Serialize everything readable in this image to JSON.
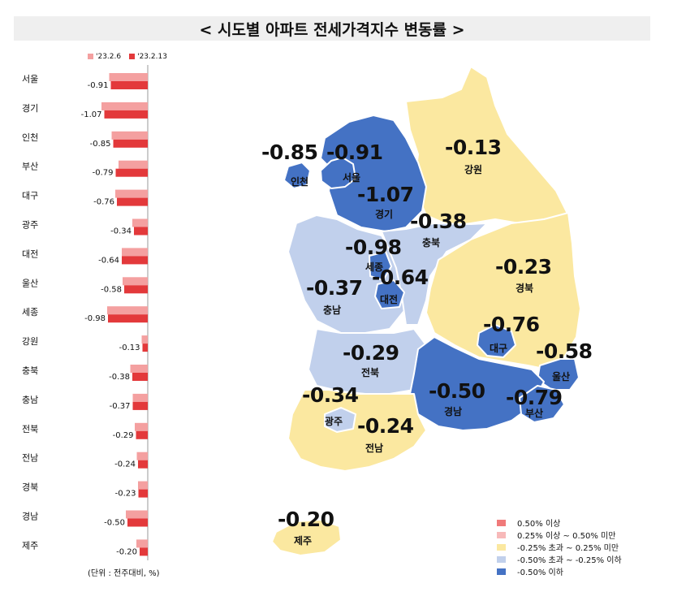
{
  "title": "< 시도별 아파트 전세가격지수 변동률 >",
  "legend_top": [
    {
      "label": "'23.2.6",
      "color": "#f4a0a0"
    },
    {
      "label": "'23.2.13",
      "color": "#e3393b"
    }
  ],
  "unit_note": "(단위 : 전주대비, %)",
  "chart_data": {
    "type": "bar",
    "orientation": "horizontal",
    "categories": [
      "서울",
      "경기",
      "인천",
      "부산",
      "대구",
      "광주",
      "대전",
      "울산",
      "세종",
      "강원",
      "충북",
      "충남",
      "전북",
      "전남",
      "경북",
      "경남",
      "제주"
    ],
    "series": [
      {
        "name": "'23.2.6",
        "color": "#f4a0a0",
        "values": [
          -0.95,
          -1.14,
          -0.89,
          -0.72,
          -0.8,
          -0.38,
          -0.64,
          -0.62,
          -1.0,
          -0.15,
          -0.43,
          -0.37,
          -0.32,
          -0.27,
          -0.24,
          -0.54,
          -0.28
        ]
      },
      {
        "name": "'23.2.13",
        "color": "#e3393b",
        "values": [
          -0.91,
          -1.07,
          -0.85,
          -0.79,
          -0.76,
          -0.34,
          -0.64,
          -0.58,
          -0.98,
          -0.13,
          -0.38,
          -0.37,
          -0.29,
          -0.24,
          -0.23,
          -0.5,
          -0.2
        ]
      }
    ],
    "data_labels": [
      "-0.91",
      "-1.07",
      "-0.85",
      "-0.79",
      "-0.76",
      "-0.34",
      "-0.64",
      "-0.58",
      "-0.98",
      "-0.13",
      "-0.38",
      "-0.37",
      "-0.29",
      "-0.24",
      "-0.23",
      "-0.50",
      "-0.20"
    ],
    "xlim": [
      -1.2,
      0
    ],
    "grid": false
  },
  "map": {
    "regions": [
      {
        "id": "incheon",
        "name": "인천",
        "value": "-0.85",
        "color": "#4472c4"
      },
      {
        "id": "seoul",
        "name": "서울",
        "value": "-0.91",
        "color": "#4472c4"
      },
      {
        "id": "gyeonggi",
        "name": "경기",
        "value": "-1.07",
        "color": "#4472c4"
      },
      {
        "id": "gangwon",
        "name": "강원",
        "value": "-0.13",
        "color": "#fbe8a0"
      },
      {
        "id": "chungbuk",
        "name": "충북",
        "value": "-0.38",
        "color": "#c1d0ec"
      },
      {
        "id": "sejong",
        "name": "세종",
        "value": "-0.98",
        "color": "#4472c4"
      },
      {
        "id": "daejeon",
        "name": "대전",
        "value": "-0.64",
        "color": "#4472c4"
      },
      {
        "id": "chungnam",
        "name": "충남",
        "value": "-0.37",
        "color": "#c1d0ec"
      },
      {
        "id": "gyeongbuk",
        "name": "경북",
        "value": "-0.23",
        "color": "#fbe8a0"
      },
      {
        "id": "daegu",
        "name": "대구",
        "value": "-0.76",
        "color": "#4472c4"
      },
      {
        "id": "jeonbuk",
        "name": "전북",
        "value": "-0.29",
        "color": "#c1d0ec"
      },
      {
        "id": "ulsan",
        "name": "울산",
        "value": "-0.58",
        "color": "#4472c4"
      },
      {
        "id": "gyeongnam",
        "name": "경남",
        "value": "-0.50",
        "color": "#4472c4"
      },
      {
        "id": "busan",
        "name": "부산",
        "value": "-0.79",
        "color": "#4472c4"
      },
      {
        "id": "gwangju",
        "name": "광주",
        "value": "-0.34",
        "color": "#c1d0ec"
      },
      {
        "id": "jeonnam",
        "name": "전남",
        "value": "-0.24",
        "color": "#fbe8a0"
      },
      {
        "id": "jeju",
        "name": "제주",
        "value": "-0.20",
        "color": "#fbe8a0"
      }
    ],
    "legend": [
      {
        "label": "0.50% 이상",
        "color": "#f07a7a"
      },
      {
        "label": "0.25% 이상 ~ 0.50% 미만",
        "color": "#f7b9b9"
      },
      {
        "label": "-0.25% 초과 ~ 0.25% 미만",
        "color": "#fbe8a0"
      },
      {
        "label": "-0.50% 초과 ~ -0.25% 이하",
        "color": "#c1d0ec"
      },
      {
        "label": "-0.50% 이하",
        "color": "#4472c4"
      }
    ]
  }
}
